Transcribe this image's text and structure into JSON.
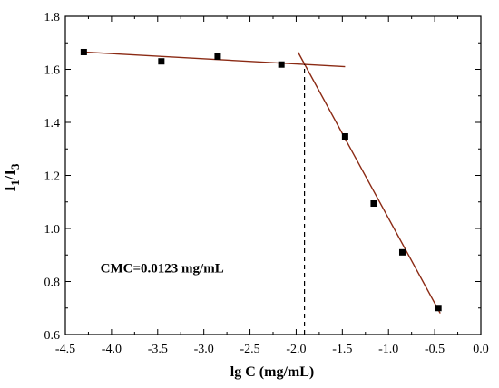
{
  "chart_data": {
    "type": "scatter",
    "xlabel": "lg C (mg/mL)",
    "ylabel": {
      "base": "I",
      "sub1": "1",
      "slash": "/",
      "base2": "I",
      "sub2": "3"
    },
    "xlim": [
      -4.5,
      0.0
    ],
    "ylim": [
      0.6,
      1.8
    ],
    "x_ticks": [
      -4.5,
      -4.0,
      -3.5,
      -3.0,
      -2.5,
      -2.0,
      -1.5,
      -1.0,
      -0.5,
      0.0
    ],
    "x_tick_labels": [
      "-4.5",
      "-4.0",
      "-3.5",
      "-3.0",
      "-2.5",
      "-2.0",
      "-1.5",
      "-1.0",
      "-0.5",
      "0.0"
    ],
    "y_ticks": [
      0.6,
      0.8,
      1.0,
      1.2,
      1.4,
      1.6,
      1.8
    ],
    "y_tick_labels": [
      "0.6",
      "0.8",
      "1.0",
      "1.2",
      "1.4",
      "1.6",
      "1.8"
    ],
    "points": {
      "x": [
        -4.3,
        -3.46,
        -2.85,
        -2.16,
        -1.47,
        -1.16,
        -0.85,
        -0.46
      ],
      "y": [
        1.665,
        1.63,
        1.648,
        1.618,
        1.347,
        1.094,
        0.91,
        0.7
      ]
    },
    "fit_lines": [
      {
        "x": [
          -4.3,
          -1.47
        ],
        "y": [
          1.665,
          1.61
        ]
      },
      {
        "x": [
          -1.98,
          -0.44
        ],
        "y": [
          1.665,
          0.68
        ]
      }
    ],
    "cmc_line": {
      "x": -1.91,
      "y_from": 0.6,
      "y_to": 1.618
    },
    "annotation": {
      "text": "CMC=0.0123 mg/mL",
      "x": -4.12,
      "y": 0.834
    },
    "colors": {
      "fit": "#8b2a14",
      "marker": "#000000",
      "axis": "#000000"
    }
  }
}
